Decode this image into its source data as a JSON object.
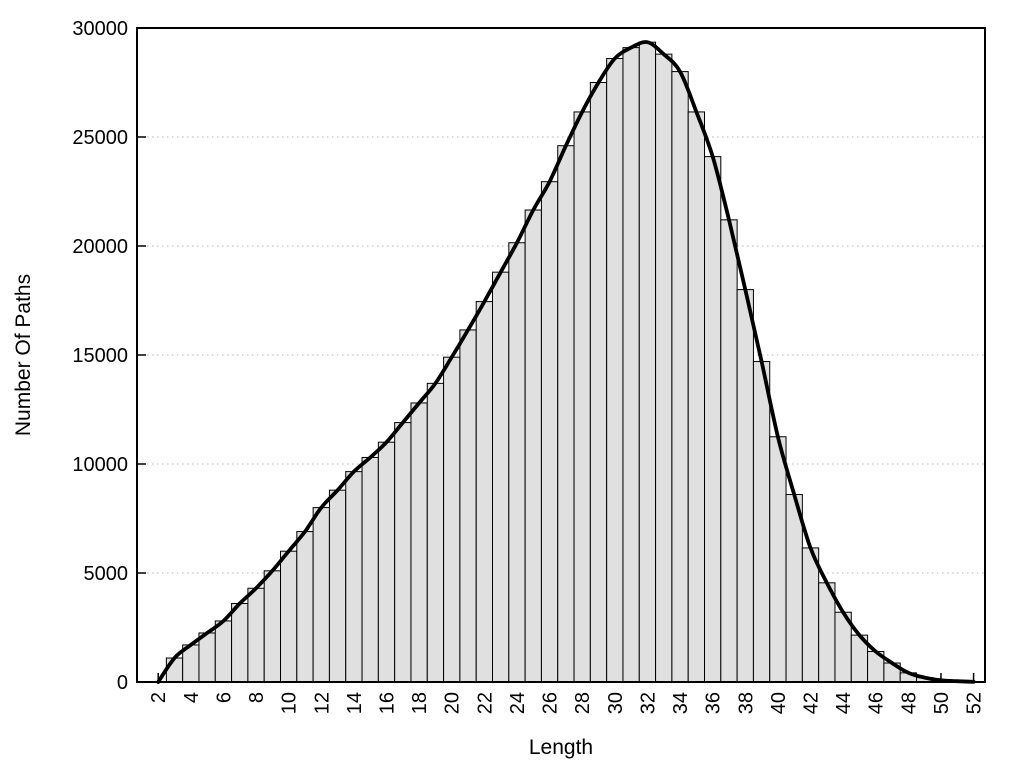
{
  "chart_data": {
    "type": "bar",
    "subtype": "histogram-with-smooth-line-overlay",
    "title": "",
    "xlabel": "Length",
    "ylabel": "Number Of Paths",
    "x": [
      2,
      3,
      4,
      5,
      6,
      7,
      8,
      9,
      10,
      11,
      12,
      13,
      14,
      15,
      16,
      17,
      18,
      19,
      20,
      21,
      22,
      23,
      24,
      25,
      26,
      27,
      28,
      29,
      30,
      31,
      32,
      33,
      34,
      35,
      36,
      37,
      38,
      39,
      40,
      41,
      42,
      43,
      44,
      45,
      46,
      47,
      48,
      49,
      50,
      51,
      52
    ],
    "values": [
      0,
      1100,
      1700,
      2250,
      2800,
      3600,
      4300,
      5100,
      6000,
      6900,
      8000,
      8800,
      9650,
      10300,
      11000,
      11900,
      12800,
      13700,
      14900,
      16150,
      17450,
      18800,
      20150,
      21650,
      22950,
      24600,
      26150,
      27500,
      28600,
      29100,
      29350,
      28800,
      28000,
      26150,
      24100,
      21200,
      18000,
      14700,
      11250,
      8600,
      6150,
      4550,
      3200,
      2150,
      1400,
      870,
      420,
      200,
      80,
      35,
      10
    ],
    "xlim": [
      0.7,
      52.7
    ],
    "ylim": [
      0,
      30000
    ],
    "yticks": [
      0,
      5000,
      10000,
      15000,
      20000,
      25000,
      30000
    ],
    "ytick_labels": [
      "0",
      "5000",
      "10000",
      "15000",
      "20000",
      "25000",
      "30000"
    ],
    "xticks": [
      2,
      4,
      6,
      8,
      10,
      12,
      14,
      16,
      18,
      20,
      22,
      24,
      26,
      28,
      30,
      32,
      34,
      36,
      38,
      40,
      42,
      44,
      46,
      48,
      50,
      52
    ],
    "grid": "horizontal-dotted",
    "legend": "none",
    "colors": {
      "background": "#ffffff",
      "bar_fill": "#e0e0e0",
      "bar_stroke": "#000000",
      "line": "#000000",
      "grid": "#b4b4b4",
      "axis": "#000000",
      "text": "#000000"
    }
  }
}
